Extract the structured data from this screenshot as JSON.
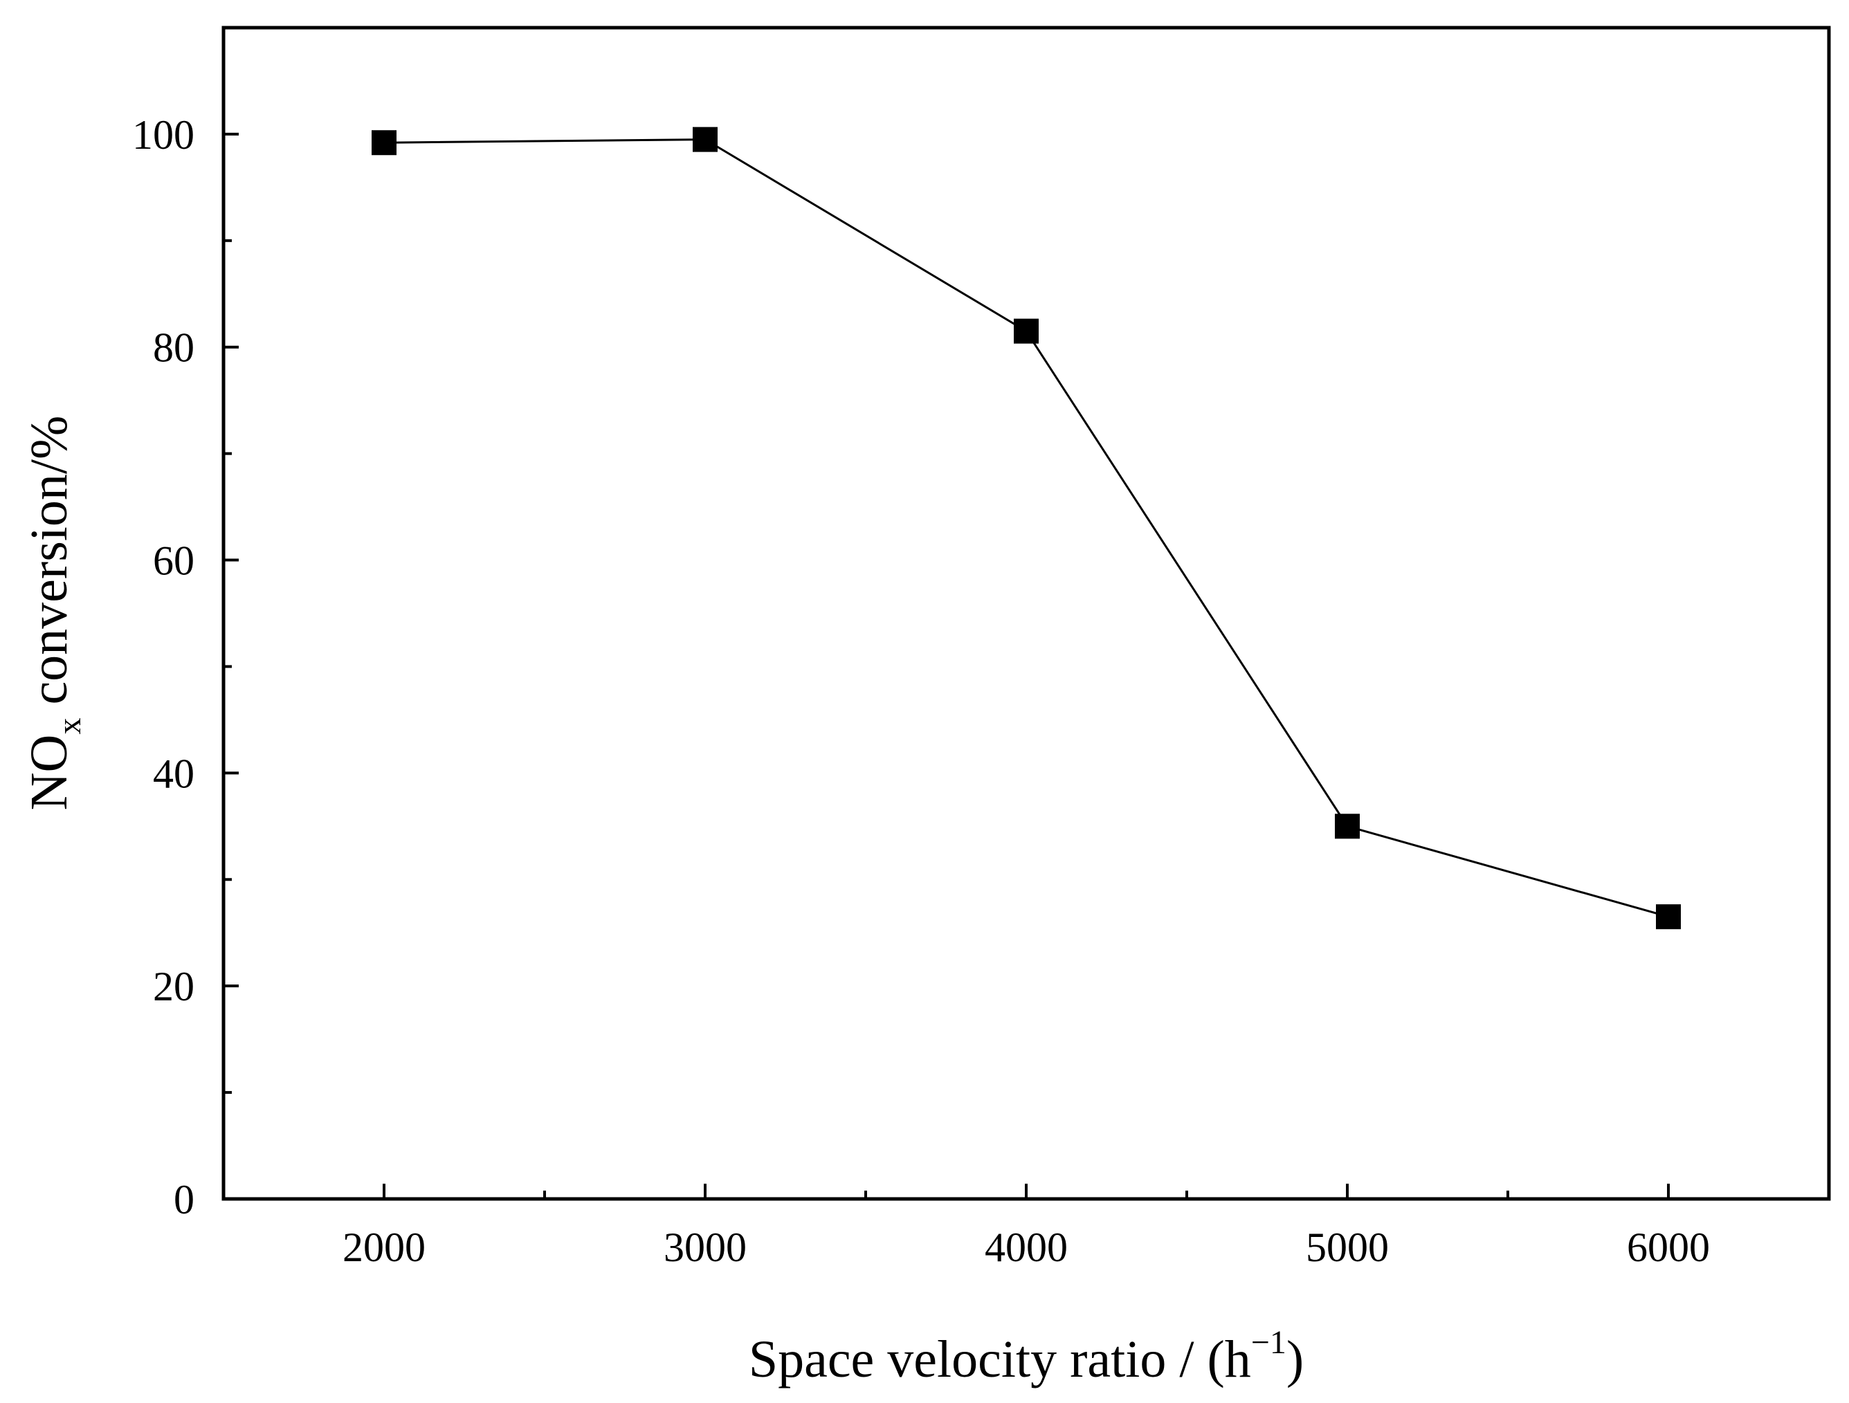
{
  "chart_data": {
    "type": "line",
    "title": "",
    "xlabel": "Space velocity ratio / (h",
    "xlabel_sup": "−1",
    "xlabel_close": ")",
    "ylabel_main": "NO",
    "ylabel_sub": "x",
    "ylabel_rest": " conversion/%",
    "xlim": [
      1500,
      6500
    ],
    "ylim": [
      0,
      110
    ],
    "x_ticks": [
      2000,
      3000,
      4000,
      5000,
      6000
    ],
    "x_minor_ticks": [
      2500,
      3500,
      4500,
      5500
    ],
    "y_ticks": [
      0,
      20,
      40,
      60,
      80,
      100
    ],
    "y_minor_ticks": [
      10,
      30,
      50,
      70,
      90
    ],
    "grid": false,
    "series": [
      {
        "name": "NOx conversion",
        "marker": "square",
        "color": "#000000",
        "x": [
          2000,
          3000,
          4000,
          5000,
          6000
        ],
        "y": [
          99.2,
          99.5,
          81.5,
          35.0,
          26.5
        ]
      }
    ]
  }
}
